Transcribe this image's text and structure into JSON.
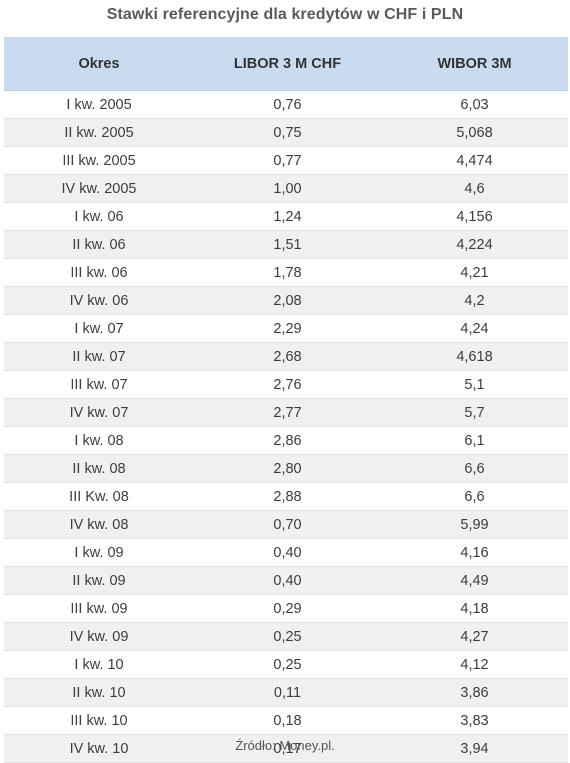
{
  "title": "Stawki referencyjne dla kredytów w CHF i PLN",
  "columns": [
    "Okres",
    "LIBOR 3 M CHF",
    "WIBOR 3M"
  ],
  "rows": [
    [
      "I kw. 2005",
      "0,76",
      "6,03"
    ],
    [
      "II kw. 2005",
      "0,75",
      "5,068"
    ],
    [
      "III kw. 2005",
      "0,77",
      "4,474"
    ],
    [
      "IV kw. 2005",
      "1,00",
      "4,6"
    ],
    [
      "I kw. 06",
      "1,24",
      "4,156"
    ],
    [
      "II kw. 06",
      "1,51",
      "4,224"
    ],
    [
      "III kw. 06",
      "1,78",
      "4,21"
    ],
    [
      "IV kw. 06",
      "2,08",
      "4,2"
    ],
    [
      "I kw. 07",
      "2,29",
      "4,24"
    ],
    [
      "II kw. 07",
      "2,68",
      "4,618"
    ],
    [
      "III kw. 07",
      "2,76",
      "5,1"
    ],
    [
      "IV kw. 07",
      "2,77",
      "5,7"
    ],
    [
      "I kw. 08",
      "2,86",
      "6,1"
    ],
    [
      "II kw. 08",
      "2,80",
      "6,6"
    ],
    [
      "III Kw. 08",
      "2,88",
      "6,6"
    ],
    [
      "IV kw. 08",
      "0,70",
      "5,99"
    ],
    [
      "I kw. 09",
      "0,40",
      "4,16"
    ],
    [
      "II kw. 09",
      "0,40",
      "4,49"
    ],
    [
      "III kw. 09",
      "0,29",
      "4,18"
    ],
    [
      "IV kw. 09",
      "0,25",
      "4,27"
    ],
    [
      "I kw. 10",
      "0,25",
      "4,12"
    ],
    [
      "II kw. 10",
      "0,11",
      "3,86"
    ],
    [
      "III kw. 10",
      "0,18",
      "3,83"
    ],
    [
      "IV kw. 10",
      "0,17",
      "3,94"
    ]
  ],
  "source": "Źródło: Money.pl."
}
